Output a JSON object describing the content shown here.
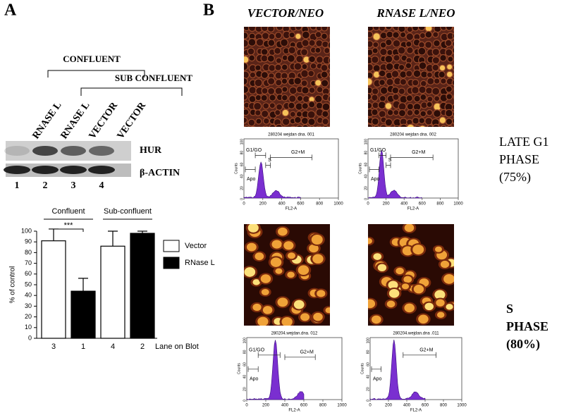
{
  "panel_a": {
    "label": "A",
    "blot": {
      "groups": [
        "CONFLUENT",
        "SUB CONFLUENT"
      ],
      "lanes": [
        "RNASE L",
        "RNASE L",
        "VECTOR",
        "VECTOR"
      ],
      "lane_numbers": [
        "1",
        "2",
        "3",
        "4"
      ],
      "bands": [
        "HUR",
        "β-ACTIN"
      ]
    }
  },
  "chart_data": {
    "type": "bar",
    "ylabel": "% of control",
    "xlabel": "Lane on Blot",
    "categories": [
      "3",
      "1",
      "4",
      "2"
    ],
    "series": [
      {
        "name": "Vector",
        "color": "#ffffff",
        "values": [
          91,
          null,
          86,
          null
        ],
        "errors": [
          11,
          null,
          14,
          null
        ]
      },
      {
        "name": "RNase L",
        "color": "#000000",
        "values": [
          null,
          44,
          null,
          98
        ],
        "errors": [
          null,
          12,
          null,
          2
        ]
      }
    ],
    "ylim": [
      0,
      100
    ],
    "yticks": [
      0,
      10,
      20,
      30,
      40,
      50,
      60,
      70,
      80,
      90,
      100
    ],
    "groups": [
      "Confluent",
      "Sub-confluent"
    ],
    "significance": "***"
  },
  "panel_b": {
    "label": "B",
    "columns": [
      "VECTOR/NEO",
      "RNASE L/NEO"
    ],
    "rows": [
      {
        "label_lines": [
          "LATE G1",
          "PHASE",
          "(75%)"
        ]
      },
      {
        "label_lines": [
          "S",
          "PHASE",
          "(80%)"
        ]
      }
    ],
    "histograms": [
      {
        "title": "280204 wejdan dna. 001",
        "gates": [
          "G1/GO",
          "G2+M",
          "Apo",
          "S"
        ],
        "xlabel": "FL2-A",
        "xticks": [
          "0",
          "200",
          "400",
          "600",
          "800",
          "1000"
        ],
        "ylabel": "Counts",
        "yticks": [
          "0",
          "20",
          "40",
          "60",
          "80",
          "100"
        ]
      },
      {
        "title": "280204 wejdan dna. 002",
        "gates": [
          "G1/GO",
          "G2+M",
          "Apo",
          "S"
        ],
        "xlabel": "FL2-A",
        "xticks": [
          "0",
          "200",
          "400",
          "600",
          "800",
          "1000"
        ],
        "ylabel": "Counts",
        "yticks": [
          "0",
          "20",
          "40",
          "60",
          "80",
          "100"
        ]
      },
      {
        "title": "280204.wejdan.dna. 012",
        "gates": [
          "G1/GO",
          "G2+M",
          "Apo"
        ],
        "xlabel": "FL2-A",
        "xticks": [
          "0",
          "200",
          "400",
          "600",
          "800",
          "1000"
        ],
        "ylabel": "Counts",
        "yticks": [
          "0",
          "20",
          "40",
          "60",
          "80",
          "100"
        ]
      },
      {
        "title": "280204.wejdan.dna .011",
        "gates": [
          "G2+M",
          "Apo"
        ],
        "xlabel": "FL2-A",
        "xticks": [
          "0",
          "200",
          "400",
          "600",
          "800",
          "1000"
        ],
        "ylabel": "Counts",
        "yticks": [
          "0",
          "20",
          "40",
          "60",
          "80",
          "100"
        ]
      }
    ]
  }
}
